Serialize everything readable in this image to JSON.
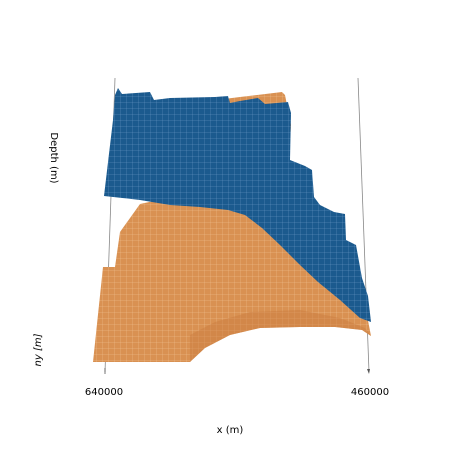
{
  "chart_data": {
    "type": "surface3d",
    "title": "",
    "xlabel": "x (m)",
    "ylabel": "ny [m]",
    "zlabel": "Depth (m)",
    "x_tick_labels": [
      "640000",
      "460000"
    ],
    "grid": false,
    "series": [
      {
        "name": "",
        "color": "#d99152",
        "edge_color": "#f4c79c",
        "description": "lower horizon surface (orange)"
      },
      {
        "name": "",
        "color": "#1b5a8e",
        "edge_color": "#5a8fc0",
        "description": "upper horizon surface (blue)"
      }
    ]
  }
}
